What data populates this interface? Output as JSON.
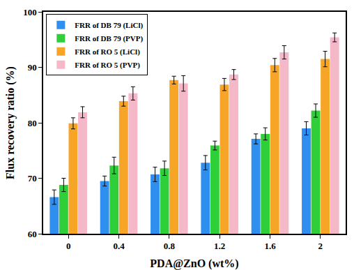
{
  "chart_data": {
    "type": "bar",
    "x_label": "PDA@ZnO (wt%)",
    "y_label": "Flux recovery ratio (%)",
    "categories": [
      "0",
      "0.4",
      "0.8",
      "1.2",
      "1.6",
      "2"
    ],
    "series": [
      {
        "name": "FRR of DB 79 (LiCl)",
        "color": "#2f8fef",
        "values": [
          66.6,
          69.5,
          70.7,
          72.8,
          77.1,
          79.0
        ],
        "errors": [
          1.3,
          0.9,
          1.3,
          1.3,
          0.9,
          1.2
        ]
      },
      {
        "name": "FRR of DB 79 (PVP)",
        "color": "#2fcf3a",
        "values": [
          68.8,
          72.3,
          71.8,
          75.9,
          78.0,
          82.2
        ],
        "errors": [
          1.2,
          1.5,
          1.3,
          0.8,
          1.1,
          1.2
        ]
      },
      {
        "name": "FRR of RO 5 (LiCl)",
        "color": "#f6a527",
        "values": [
          79.9,
          83.9,
          87.7,
          86.9,
          90.4,
          91.5
        ],
        "errors": [
          1.0,
          0.9,
          0.7,
          1.1,
          1.2,
          1.4
        ]
      },
      {
        "name": "FRR of RO 5 (PVP)",
        "color": "#f5b8c8",
        "values": [
          81.9,
          85.3,
          87.1,
          88.7,
          92.7,
          95.4
        ],
        "errors": [
          1.0,
          1.2,
          1.4,
          0.9,
          1.2,
          0.8
        ]
      }
    ],
    "ylim": [
      60,
      100
    ],
    "yticks": [
      60,
      70,
      80,
      90,
      100
    ],
    "grid": false,
    "legend": "top-left"
  }
}
